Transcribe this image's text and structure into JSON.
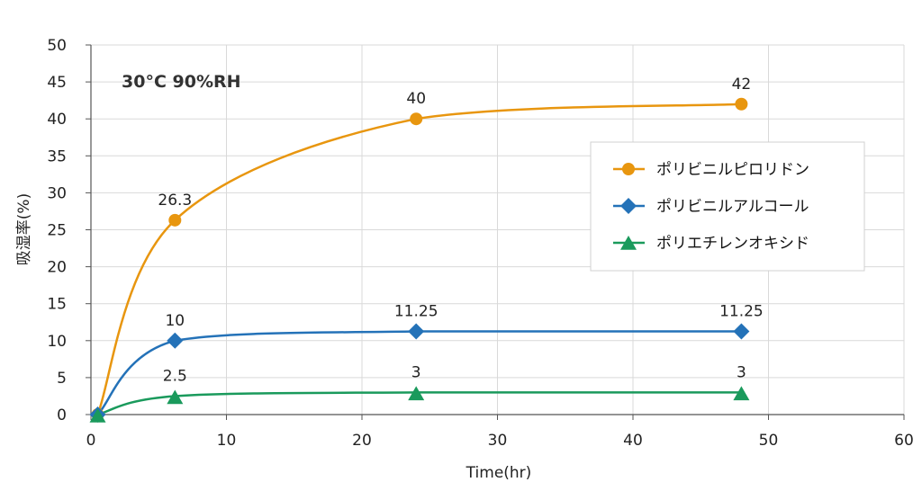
{
  "chart_data": {
    "type": "line",
    "annotation": "30°C 90%RH",
    "xlabel": "Time(hr)",
    "ylabel": "吸湿率(%)",
    "xlim": [
      0,
      60
    ],
    "ylim": [
      0,
      50
    ],
    "xticks": [
      0,
      10,
      20,
      30,
      40,
      50,
      60
    ],
    "yticks": [
      0,
      5,
      10,
      15,
      20,
      25,
      30,
      35,
      40,
      45,
      50
    ],
    "grid": true,
    "legend_position": "right",
    "series": [
      {
        "name": "ポリビニルピロリドン",
        "color": "#E8960F",
        "marker": "circle",
        "x": [
          0.5,
          6.2,
          24,
          48
        ],
        "y": [
          0,
          26.3,
          40,
          42
        ],
        "labels": [
          "",
          "26.3",
          "40",
          "42"
        ]
      },
      {
        "name": "ポリビニルアルコール",
        "color": "#2472B8",
        "marker": "diamond",
        "x": [
          0.5,
          6.2,
          24,
          48
        ],
        "y": [
          0,
          10,
          11.25,
          11.25
        ],
        "labels": [
          "",
          "10",
          "11.25",
          "11.25"
        ]
      },
      {
        "name": "ポリエチレンオキシド",
        "color": "#1A9A5C",
        "marker": "triangle",
        "x": [
          0.5,
          6.2,
          24,
          48
        ],
        "y": [
          0,
          2.5,
          3,
          3
        ],
        "labels": [
          "",
          "2.5",
          "3",
          "3"
        ]
      }
    ]
  }
}
